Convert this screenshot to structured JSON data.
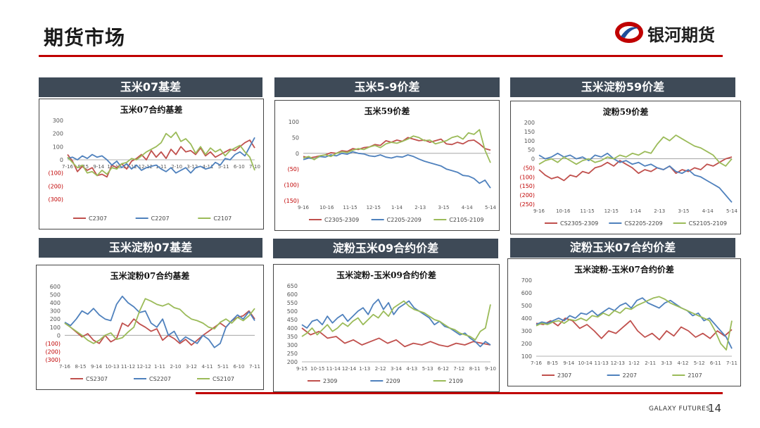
{
  "page": {
    "title": "期货市场",
    "brand": "银河期货",
    "footer": "GALAXY FUTURES",
    "page_number": "14"
  },
  "colors": {
    "red": "#c0504d",
    "blue": "#4f81bd",
    "green": "#9bbb59",
    "header_bg": "#3e4a57",
    "accent": "#c00000"
  },
  "icons": {
    "logo": "galaxy-futures-logo-icon"
  },
  "panels": [
    {
      "header": "玉米07基差"
    },
    {
      "header": "玉米5-9价差"
    },
    {
      "header": "玉米淀粉59价差"
    },
    {
      "header": "玉米淀粉07基差"
    },
    {
      "header": "淀粉玉米09合约价差"
    },
    {
      "header": "淀粉玉米07合约价差"
    }
  ],
  "chart_data": [
    {
      "type": "line",
      "title": "玉米07合约基差",
      "ylim": [
        -300,
        300
      ],
      "yticks": [
        "300",
        "200",
        "100",
        "0",
        "(100)",
        "(200)",
        "(300)"
      ],
      "xticks": [
        "7-16",
        "8-15",
        "9-14",
        "10-13",
        "11-12",
        "12-12",
        "1-11",
        "2-10",
        "3-12",
        "4-11",
        "5-11",
        "6-10",
        "7-10"
      ],
      "series": [
        {
          "name": "C2307",
          "values": [
            40,
            -10,
            -90,
            -50,
            -80,
            -60,
            -120,
            -110,
            -130,
            -40,
            -60,
            -30,
            -70,
            -10,
            10,
            40,
            0,
            70,
            20,
            60,
            10,
            80,
            40,
            100,
            60,
            70,
            40,
            90,
            30,
            60,
            20,
            40,
            60,
            80,
            70,
            100,
            130,
            150,
            90
          ]
        },
        {
          "name": "C2207",
          "values": [
            10,
            20,
            0,
            30,
            10,
            40,
            20,
            30,
            0,
            -40,
            -10,
            -60,
            -30,
            -70,
            -40,
            -80,
            -60,
            -50,
            -40,
            -70,
            -90,
            -60,
            -100,
            -80,
            -60,
            -100,
            -60,
            -50,
            -70,
            -60,
            -20,
            -40,
            10,
            0,
            40,
            60,
            30,
            100,
            170
          ]
        },
        {
          "name": "C2107",
          "values": [
            20,
            -20,
            -60,
            -40,
            -100,
            -90,
            -120,
            -80,
            -110,
            -60,
            -70,
            -30,
            -20,
            10,
            0,
            30,
            60,
            80,
            100,
            130,
            200,
            170,
            210,
            140,
            160,
            120,
            50,
            100,
            40,
            90,
            60,
            80,
            30,
            70,
            90,
            110,
            60,
            20,
            -80
          ]
        }
      ]
    },
    {
      "type": "line",
      "title": "玉米59价差",
      "ylim": [
        -150,
        100
      ],
      "yticks": [
        "100",
        "50",
        "0",
        "(50)",
        "(100)",
        "(150)"
      ],
      "xticks": [
        "9-16",
        "10-16",
        "11-15",
        "12-15",
        "1-14",
        "2-13",
        "3-15",
        "4-14",
        "5-14"
      ],
      "series": [
        {
          "name": "C2305-2309",
          "values": [
            -10,
            -15,
            -12,
            -8,
            -5,
            2,
            0,
            8,
            6,
            15,
            12,
            18,
            20,
            28,
            25,
            40,
            35,
            42,
            38,
            50,
            45,
            40,
            42,
            35,
            40,
            45,
            30,
            28,
            35,
            30,
            40,
            42,
            30,
            15,
            10
          ]
        },
        {
          "name": "C2205-2209",
          "values": [
            -20,
            -15,
            -18,
            -10,
            -12,
            -5,
            -8,
            0,
            -3,
            5,
            0,
            -2,
            -8,
            -10,
            -5,
            -12,
            -15,
            -10,
            -12,
            -5,
            -10,
            -18,
            -25,
            -30,
            -35,
            -40,
            -50,
            -55,
            -60,
            -70,
            -72,
            -80,
            -95,
            -85,
            -110
          ]
        },
        {
          "name": "C2105-2109",
          "values": [
            -15,
            -10,
            -20,
            -8,
            -5,
            -10,
            0,
            5,
            3,
            10,
            15,
            12,
            20,
            25,
            18,
            30,
            35,
            32,
            38,
            45,
            55,
            50,
            40,
            42,
            30,
            35,
            40,
            50,
            55,
            45,
            65,
            60,
            75,
            10,
            -30
          ]
        }
      ]
    },
    {
      "type": "line",
      "title": "淀粉59价差",
      "ylim": [
        -250,
        200
      ],
      "yticks": [
        "200",
        "150",
        "100",
        "50",
        "0",
        "(50)",
        "(100)",
        "(150)",
        "(200)",
        "(250)"
      ],
      "xticks": [
        "9-16",
        "10-16",
        "11-15",
        "12-15",
        "1-14",
        "2-13",
        "3-15",
        "4-14",
        "5-14"
      ],
      "series": [
        {
          "name": "CS2305-2309",
          "values": [
            -60,
            -90,
            -110,
            -100,
            -120,
            -90,
            -100,
            -70,
            -80,
            -50,
            -40,
            -20,
            -40,
            -10,
            -30,
            -50,
            -80,
            -60,
            -70,
            -50,
            -60,
            -40,
            -80,
            -60,
            -70,
            -50,
            -60,
            -30,
            -40,
            -20,
            0,
            10
          ]
        },
        {
          "name": "CS2205-2209",
          "values": [
            20,
            0,
            10,
            30,
            10,
            20,
            0,
            10,
            -10,
            20,
            10,
            30,
            0,
            -20,
            -10,
            -30,
            -20,
            -40,
            -30,
            -50,
            -60,
            -40,
            -70,
            -80,
            -60,
            -90,
            -100,
            -120,
            -140,
            -160,
            -200,
            -240
          ]
        },
        {
          "name": "CS2105-2109",
          "values": [
            -30,
            -10,
            0,
            -20,
            10,
            -10,
            -30,
            -10,
            0,
            -20,
            -10,
            10,
            0,
            20,
            10,
            30,
            20,
            40,
            30,
            80,
            120,
            100,
            130,
            110,
            90,
            70,
            60,
            40,
            20,
            -20,
            -40,
            0
          ]
        }
      ]
    },
    {
      "type": "line",
      "title": "玉米淀粉07合约基差",
      "ylim": [
        -300,
        600
      ],
      "yticks": [
        "600",
        "500",
        "400",
        "300",
        "200",
        "100",
        "0",
        "(100)",
        "(200)",
        "(300)"
      ],
      "xticks": [
        "7-16",
        "8-15",
        "9-14",
        "10-13",
        "11-12",
        "12-12",
        "1-11",
        "2-10",
        "3-12",
        "4-11",
        "5-11",
        "6-10",
        "7-11"
      ],
      "series": [
        {
          "name": "CS2307",
          "values": [
            150,
            100,
            40,
            -20,
            20,
            -60,
            -100,
            0,
            -80,
            -40,
            150,
            110,
            200,
            140,
            100,
            50,
            80,
            -60,
            0,
            -40,
            -100,
            -50,
            -120,
            -60,
            0,
            50,
            100,
            150,
            100,
            180,
            220,
            240,
            300,
            200
          ]
        },
        {
          "name": "CS2207",
          "values": [
            160,
            120,
            200,
            300,
            260,
            330,
            250,
            200,
            180,
            380,
            480,
            400,
            350,
            280,
            300,
            150,
            100,
            200,
            0,
            50,
            -80,
            -20,
            -60,
            -100,
            0,
            -50,
            -150,
            -100,
            100,
            180,
            250,
            200,
            290,
            180
          ]
        },
        {
          "name": "CS2107",
          "values": [
            150,
            100,
            50,
            0,
            -60,
            -100,
            -60,
            0,
            30,
            -50,
            -30,
            40,
            100,
            300,
            450,
            420,
            380,
            360,
            390,
            340,
            320,
            250,
            200,
            180,
            150,
            100,
            80,
            160,
            200,
            150,
            220,
            180,
            240,
            330
          ]
        }
      ]
    },
    {
      "type": "line",
      "title": "玉米淀粉-玉米09合约价差",
      "ylim": [
        200,
        650
      ],
      "yticks": [
        "650",
        "600",
        "550",
        "500",
        "450",
        "400",
        "350",
        "300",
        "250",
        "200"
      ],
      "xticks": [
        "9-15",
        "10-15",
        "11-14",
        "12-14",
        "1-13",
        "2-12",
        "3-14",
        "4-13",
        "5-13",
        "6-12",
        "7-12",
        "8-11",
        "9-10"
      ],
      "series": [
        {
          "name": "2309",
          "values": [
            400,
            360,
            380,
            340,
            350,
            310,
            330,
            300,
            320,
            340,
            310,
            330,
            290,
            310,
            300,
            320,
            300,
            290,
            310,
            300,
            320,
            310,
            300
          ]
        },
        {
          "name": "2209",
          "values": [
            420,
            400,
            440,
            450,
            420,
            470,
            430,
            460,
            480,
            440,
            470,
            500,
            520,
            480,
            540,
            570,
            510,
            550,
            480,
            520,
            540,
            560,
            520,
            500,
            480,
            460,
            420,
            440,
            410,
            400,
            380,
            360,
            370,
            340,
            320,
            290,
            320,
            300
          ]
        },
        {
          "name": "2109",
          "values": [
            350,
            370,
            400,
            360,
            390,
            420,
            380,
            400,
            430,
            410,
            440,
            460,
            420,
            450,
            480,
            460,
            500,
            470,
            520,
            540,
            560,
            530,
            510,
            500,
            490,
            470,
            450,
            440,
            420,
            400,
            390,
            370,
            360,
            350,
            330,
            380,
            400,
            540
          ]
        }
      ]
    },
    {
      "type": "line",
      "title": "玉米淀粉-玉米07合约价差",
      "ylim": [
        100,
        700
      ],
      "yticks": [
        "700",
        "600",
        "500",
        "400",
        "300",
        "200",
        "100"
      ],
      "xticks": [
        "7-16",
        "8-15",
        "9-14",
        "10-14",
        "11-13",
        "12-13",
        "1-12",
        "2-11",
        "3-13",
        "4-12",
        "5-12",
        "6-11",
        "7-11"
      ],
      "series": [
        {
          "name": "2307",
          "values": [
            360,
            350,
            380,
            340,
            400,
            380,
            320,
            350,
            300,
            240,
            300,
            280,
            330,
            380,
            300,
            250,
            280,
            230,
            300,
            260,
            330,
            300,
            250,
            280,
            240,
            300,
            260,
            310
          ]
        },
        {
          "name": "2207",
          "values": [
            350,
            370,
            360,
            380,
            400,
            380,
            420,
            400,
            440,
            430,
            460,
            420,
            450,
            480,
            460,
            500,
            520,
            480,
            540,
            560,
            520,
            500,
            480,
            520,
            540,
            510,
            480,
            460,
            420,
            440,
            380,
            400,
            350,
            300,
            250,
            160
          ]
        },
        {
          "name": "2107",
          "values": [
            340,
            360,
            350,
            370,
            380,
            360,
            390,
            380,
            400,
            380,
            420,
            410,
            440,
            420,
            460,
            440,
            480,
            470,
            500,
            520,
            540,
            560,
            570,
            550,
            520,
            500,
            480,
            460,
            440,
            420,
            400,
            380,
            300,
            200,
            150,
            380
          ]
        }
      ]
    }
  ]
}
